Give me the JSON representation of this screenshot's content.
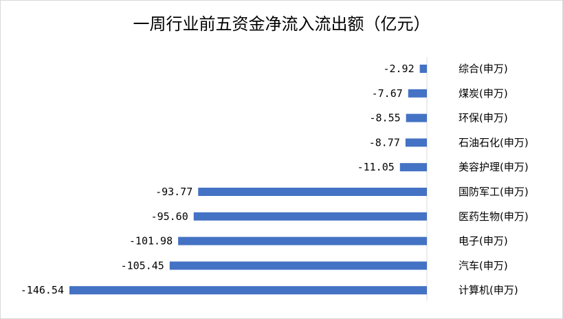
{
  "chart_data": {
    "type": "bar",
    "orientation": "horizontal",
    "title": "一周行业前五资金净流入流出额（亿元）",
    "categories": [
      "综合(申万)",
      "煤炭(申万)",
      "环保(申万)",
      "石油石化(申万)",
      "美容护理(申万)",
      "国防军工(申万)",
      "医药生物(申万)",
      "电子(申万)",
      "汽车(申万)",
      "计算机(申万)"
    ],
    "values": [
      -2.92,
      -7.67,
      -8.55,
      -8.77,
      -11.05,
      -93.77,
      -95.6,
      -101.98,
      -105.45,
      -146.54
    ],
    "value_labels": [
      "-2.92",
      "-7.67",
      "-8.55",
      "-8.77",
      "-11.05",
      "-93.77",
      "-95.60",
      "-101.98",
      "-105.45",
      "-146.54"
    ],
    "bar_color": "#4472C4",
    "xlim": [
      -146.54,
      0
    ],
    "grid": false,
    "legend": "none"
  }
}
